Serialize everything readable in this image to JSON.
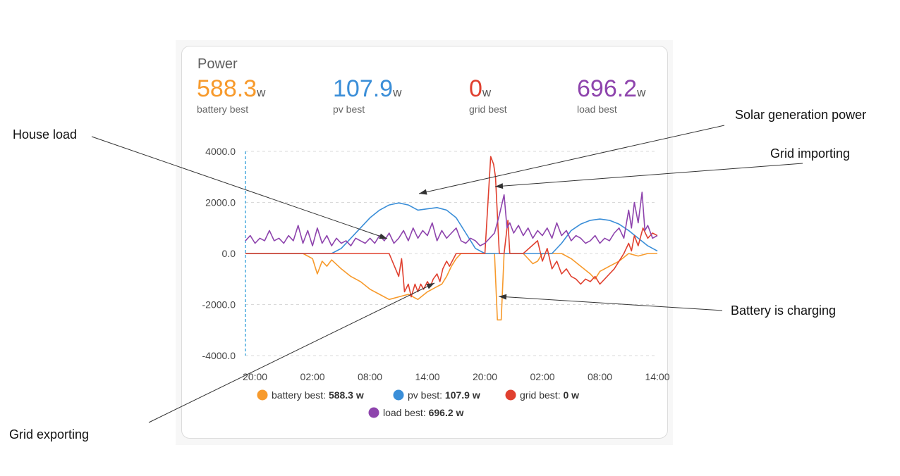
{
  "card": {
    "title": "Power"
  },
  "stats": [
    {
      "value": "588.3",
      "unit": "w",
      "label": "battery best",
      "color": "#f79a2c"
    },
    {
      "value": "107.9",
      "unit": "w",
      "label": "pv best",
      "color": "#3a8ed8"
    },
    {
      "value": "0",
      "unit": "w",
      "label": "grid best",
      "color": "#e0402f"
    },
    {
      "value": "696.2",
      "unit": "w",
      "label": "load best",
      "color": "#8e44ad"
    }
  ],
  "annotations": {
    "house_load": "House load",
    "solar": "Solar generation power",
    "grid_import": "Grid importing",
    "battery_charging": "Battery is charging",
    "grid_export": "Grid exporting"
  },
  "chart_data": {
    "type": "line",
    "x_ticks": [
      "20:00",
      "02:00",
      "08:00",
      "14:00",
      "20:00",
      "02:00",
      "08:00",
      "14:00"
    ],
    "y_ticks": [
      "4000.0",
      "2000.0",
      "0.0",
      "-2000.0",
      "-4000.0"
    ],
    "ylim": [
      -4000,
      4000
    ],
    "xlim": [
      19,
      62
    ],
    "grid": true,
    "legend_position": "bottom",
    "legend": [
      {
        "label": "battery best:",
        "value": "588.3 w",
        "color": "#f79a2c"
      },
      {
        "label": "pv best:",
        "value": "107.9 w",
        "color": "#3a8ed8"
      },
      {
        "label": "grid best:",
        "value": "0 w",
        "color": "#e0402f"
      },
      {
        "label": "load best:",
        "value": "696.2 w",
        "color": "#8e44ad"
      }
    ],
    "series": [
      {
        "name": "battery best",
        "color": "#f79a2c",
        "points": [
          [
            19,
            0
          ],
          [
            25,
            0
          ],
          [
            26,
            -200
          ],
          [
            26.5,
            -800
          ],
          [
            27,
            -300
          ],
          [
            27.5,
            -500
          ],
          [
            28,
            -250
          ],
          [
            29,
            -600
          ],
          [
            30,
            -900
          ],
          [
            31,
            -1100
          ],
          [
            32,
            -1400
          ],
          [
            33,
            -1600
          ],
          [
            34,
            -1800
          ],
          [
            35,
            -1700
          ],
          [
            36,
            -1600
          ],
          [
            37,
            -1800
          ],
          [
            38,
            -1500
          ],
          [
            39,
            -1300
          ],
          [
            39.5,
            -1200
          ],
          [
            40,
            -900
          ],
          [
            40.5,
            -500
          ],
          [
            41,
            -200
          ],
          [
            41.5,
            0
          ],
          [
            45,
            0
          ],
          [
            45.3,
            -2600
          ],
          [
            45.7,
            -2600
          ],
          [
            46,
            0
          ],
          [
            48,
            0
          ],
          [
            49,
            -400
          ],
          [
            49.5,
            -300
          ],
          [
            50,
            0
          ],
          [
            52,
            0
          ],
          [
            53,
            -200
          ],
          [
            54,
            -500
          ],
          [
            55,
            -800
          ],
          [
            55.5,
            -1000
          ],
          [
            56,
            -700
          ],
          [
            57,
            -500
          ],
          [
            58,
            -300
          ],
          [
            59,
            0
          ],
          [
            60,
            -100
          ],
          [
            61,
            0
          ],
          [
            62,
            0
          ]
        ]
      },
      {
        "name": "pv best",
        "color": "#3a8ed8",
        "points": [
          [
            19,
            0
          ],
          [
            28,
            0
          ],
          [
            29,
            200
          ],
          [
            30,
            600
          ],
          [
            31,
            1000
          ],
          [
            32,
            1400
          ],
          [
            33,
            1700
          ],
          [
            34,
            1900
          ],
          [
            35,
            1980
          ],
          [
            36,
            1900
          ],
          [
            37,
            1700
          ],
          [
            38,
            1750
          ],
          [
            39,
            1800
          ],
          [
            40,
            1700
          ],
          [
            41,
            1400
          ],
          [
            42,
            800
          ],
          [
            43,
            200
          ],
          [
            44,
            0
          ],
          [
            51,
            0
          ],
          [
            52,
            400
          ],
          [
            53,
            900
          ],
          [
            54,
            1150
          ],
          [
            55,
            1300
          ],
          [
            56,
            1350
          ],
          [
            57,
            1300
          ],
          [
            58,
            1150
          ],
          [
            59,
            900
          ],
          [
            60,
            600
          ],
          [
            61,
            300
          ],
          [
            62,
            100
          ]
        ]
      },
      {
        "name": "grid best",
        "color": "#e0402f",
        "points": [
          [
            19,
            0
          ],
          [
            34,
            0
          ],
          [
            35,
            -900
          ],
          [
            35.3,
            -200
          ],
          [
            35.6,
            -1500
          ],
          [
            36,
            -1200
          ],
          [
            36.3,
            -1700
          ],
          [
            36.7,
            -1200
          ],
          [
            37,
            -1500
          ],
          [
            37.3,
            -1200
          ],
          [
            37.6,
            -1400
          ],
          [
            38,
            -1100
          ],
          [
            38.3,
            -1300
          ],
          [
            38.6,
            -1000
          ],
          [
            39,
            -800
          ],
          [
            39.3,
            -1100
          ],
          [
            39.6,
            -600
          ],
          [
            40,
            -300
          ],
          [
            40.3,
            -500
          ],
          [
            41,
            0
          ],
          [
            44,
            0
          ],
          [
            44.6,
            3800
          ],
          [
            44.9,
            3500
          ],
          [
            45.1,
            3000
          ],
          [
            45.3,
            1500
          ],
          [
            45.5,
            0
          ],
          [
            46,
            0
          ],
          [
            46.4,
            1300
          ],
          [
            46.6,
            0
          ],
          [
            48,
            0
          ],
          [
            49.5,
            500
          ],
          [
            50,
            -300
          ],
          [
            50.5,
            200
          ],
          [
            51,
            -600
          ],
          [
            51.5,
            -300
          ],
          [
            52,
            -800
          ],
          [
            52.5,
            -600
          ],
          [
            53,
            -900
          ],
          [
            53.5,
            -1000
          ],
          [
            54,
            -1200
          ],
          [
            54.5,
            -1000
          ],
          [
            55,
            -1100
          ],
          [
            55.5,
            -900
          ],
          [
            56,
            -1200
          ],
          [
            56.5,
            -1000
          ],
          [
            57,
            -800
          ],
          [
            57.5,
            -600
          ],
          [
            58,
            -300
          ],
          [
            58.5,
            0
          ],
          [
            59,
            400
          ],
          [
            59.3,
            100
          ],
          [
            59.6,
            700
          ],
          [
            60,
            300
          ],
          [
            60.5,
            1000
          ],
          [
            61,
            600
          ],
          [
            61.5,
            800
          ],
          [
            62,
            700
          ]
        ]
      },
      {
        "name": "load best",
        "color": "#8e44ad",
        "points": [
          [
            19,
            500
          ],
          [
            19.5,
            700
          ],
          [
            20,
            400
          ],
          [
            20.5,
            600
          ],
          [
            21,
            500
          ],
          [
            21.5,
            900
          ],
          [
            22,
            500
          ],
          [
            22.5,
            600
          ],
          [
            23,
            400
          ],
          [
            23.5,
            700
          ],
          [
            24,
            500
          ],
          [
            24.5,
            1100
          ],
          [
            25,
            400
          ],
          [
            25.5,
            900
          ],
          [
            26,
            300
          ],
          [
            26.5,
            1000
          ],
          [
            27,
            400
          ],
          [
            27.5,
            700
          ],
          [
            28,
            300
          ],
          [
            28.5,
            600
          ],
          [
            29,
            400
          ],
          [
            29.5,
            500
          ],
          [
            30,
            300
          ],
          [
            30.5,
            600
          ],
          [
            31,
            500
          ],
          [
            31.5,
            400
          ],
          [
            32,
            600
          ],
          [
            32.5,
            400
          ],
          [
            33,
            700
          ],
          [
            33.5,
            500
          ],
          [
            34,
            800
          ],
          [
            34.5,
            400
          ],
          [
            35,
            600
          ],
          [
            35.5,
            900
          ],
          [
            36,
            500
          ],
          [
            36.5,
            1000
          ],
          [
            37,
            600
          ],
          [
            37.5,
            900
          ],
          [
            38,
            700
          ],
          [
            38.5,
            1200
          ],
          [
            39,
            500
          ],
          [
            39.5,
            900
          ],
          [
            40,
            600
          ],
          [
            40.5,
            800
          ],
          [
            41,
            1000
          ],
          [
            41.5,
            500
          ],
          [
            42,
            400
          ],
          [
            42.5,
            600
          ],
          [
            43,
            500
          ],
          [
            43.5,
            300
          ],
          [
            44,
            400
          ],
          [
            44.5,
            600
          ],
          [
            45,
            800
          ],
          [
            45.5,
            1500
          ],
          [
            46,
            2300
          ],
          [
            46.3,
            1000
          ],
          [
            46.6,
            1200
          ],
          [
            47,
            800
          ],
          [
            47.5,
            1100
          ],
          [
            48,
            700
          ],
          [
            48.5,
            1000
          ],
          [
            49,
            600
          ],
          [
            49.5,
            900
          ],
          [
            50,
            700
          ],
          [
            50.5,
            1000
          ],
          [
            51,
            600
          ],
          [
            51.5,
            1200
          ],
          [
            52,
            700
          ],
          [
            52.5,
            900
          ],
          [
            53,
            500
          ],
          [
            53.5,
            700
          ],
          [
            54,
            600
          ],
          [
            54.5,
            400
          ],
          [
            55,
            500
          ],
          [
            55.5,
            700
          ],
          [
            56,
            400
          ],
          [
            56.5,
            600
          ],
          [
            57,
            500
          ],
          [
            57.5,
            800
          ],
          [
            58,
            1000
          ],
          [
            58.5,
            600
          ],
          [
            59,
            1700
          ],
          [
            59.3,
            1000
          ],
          [
            59.6,
            2000
          ],
          [
            60,
            1200
          ],
          [
            60.4,
            2400
          ],
          [
            60.7,
            900
          ],
          [
            61,
            1100
          ],
          [
            61.5,
            600
          ],
          [
            62,
            700
          ]
        ]
      }
    ]
  }
}
